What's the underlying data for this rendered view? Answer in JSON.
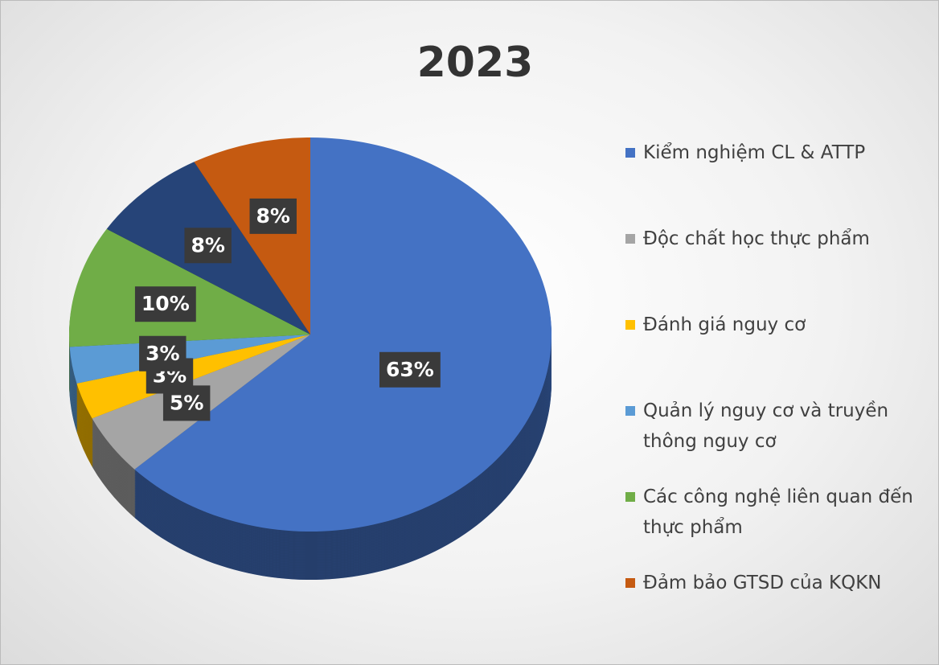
{
  "chart_data": {
    "type": "pie",
    "title": "2023",
    "categories": [
      "Kiểm nghiệm CL & ATTP",
      "Độc chất học thực phẩm",
      "Đánh giá nguy cơ",
      "Quản lý nguy cơ và truyền thông nguy cơ",
      "Các công nghệ liên quan đến thực phẩm",
      null,
      "Đảm bảo GTSD của KQKN"
    ],
    "values": [
      63,
      5,
      3,
      3,
      10,
      8,
      8
    ],
    "value_labels": [
      "63%",
      "5%",
      "3%",
      "3%",
      "10%",
      "8%",
      "8%"
    ],
    "colors": [
      "#4472c4",
      "#a5a5a5",
      "#ffc000",
      "#5b9bd5",
      "#70ad47",
      "#264478",
      "#c55a11"
    ],
    "legend": "right"
  }
}
